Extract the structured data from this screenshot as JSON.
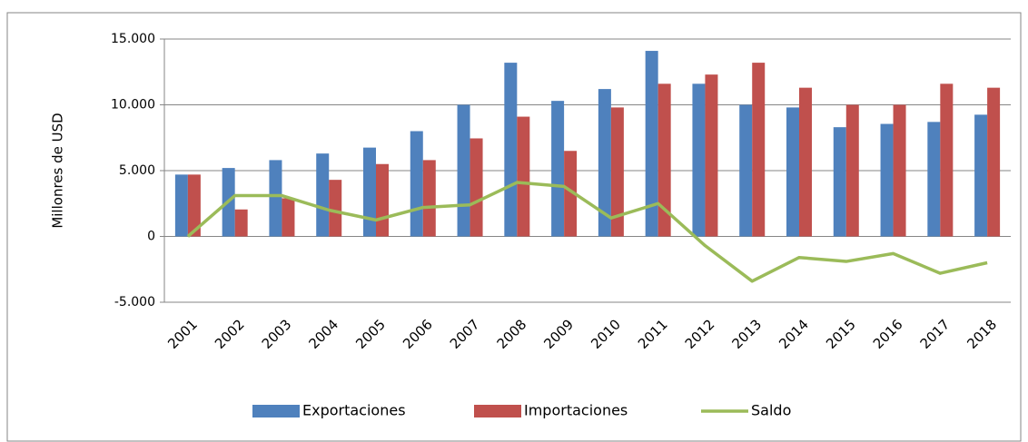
{
  "chart_data": {
    "type": "bar",
    "categories": [
      "2001",
      "2002",
      "2003",
      "2004",
      "2005",
      "2006",
      "2007",
      "2008",
      "2009",
      "2010",
      "2011",
      "2012",
      "2013",
      "2014",
      "2015",
      "2016",
      "2017",
      "2018"
    ],
    "ylabel": "Millonres de USD",
    "ylim": [
      -5000,
      15000
    ],
    "yticks": [
      {
        "value": -5000,
        "label": "-5.000"
      },
      0,
      {
        "value": 5000,
        "label": "5.000"
      },
      {
        "value": 10000,
        "label": "10.000"
      },
      {
        "value": 15000,
        "label": "15.000"
      }
    ],
    "grid": true,
    "legend": "bottom",
    "series": [
      {
        "name": "Exportaciones",
        "color": "#4f81bd",
        "type": "bar",
        "values": [
          4700,
          5200,
          5800,
          6300,
          6750,
          8000,
          10000,
          13200,
          10300,
          11200,
          14100,
          11600,
          10000,
          9800,
          8300,
          8550,
          8700,
          9250
        ]
      },
      {
        "name": "Importaciones",
        "color": "#c0504d",
        "type": "bar",
        "values": [
          4700,
          2050,
          2900,
          4300,
          5500,
          5800,
          7450,
          9100,
          6500,
          9800,
          11600,
          12300,
          13200,
          11300,
          10000,
          10000,
          11600,
          11300
        ]
      },
      {
        "name": "Saldo",
        "color": "#9bbb59",
        "type": "line",
        "values": [
          0,
          3100,
          3100,
          2000,
          1250,
          2200,
          2400,
          4100,
          3800,
          1400,
          2500,
          -700,
          -3400,
          -1600,
          -1900,
          -1300,
          -2800,
          -2000
        ]
      }
    ]
  }
}
